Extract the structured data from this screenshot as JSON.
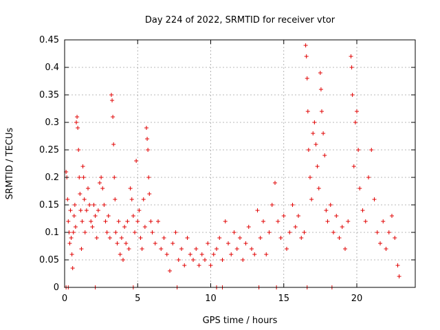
{
  "chart_data": {
    "type": "scatter",
    "title": "Day 224 of 2022, SRMTID for receiver vtor",
    "xlabel": "GPS time / hours",
    "ylabel": "SRMTID / TECUs",
    "xlim": [
      0,
      24
    ],
    "ylim": [
      0,
      0.45
    ],
    "x_ticks": [
      0,
      5,
      10,
      15,
      20
    ],
    "x_tick_labels": [
      "0",
      "5",
      "10",
      "15",
      "20"
    ],
    "y_ticks": [
      0,
      0.05,
      0.1,
      0.15,
      0.2,
      0.25,
      0.3,
      0.35,
      0.4,
      0.45
    ],
    "y_tick_labels": [
      "0",
      "0.05",
      "0.1",
      "0.15",
      "0.2",
      "0.25",
      "0.3",
      "0.35",
      "0.4",
      "0.45"
    ],
    "grid": true,
    "marker": "plus",
    "color": "#e00000",
    "series": [
      {
        "name": "SRMTID",
        "points": [
          [
            0.1,
            0.21
          ],
          [
            0.15,
            0.2
          ],
          [
            0.2,
            0.16
          ],
          [
            0.25,
            0.12
          ],
          [
            0.3,
            0.1
          ],
          [
            0.35,
            0.08
          ],
          [
            0.4,
            0.14
          ],
          [
            0.45,
            0.09
          ],
          [
            0.5,
            0.06
          ],
          [
            0.55,
            0.035
          ],
          [
            0.6,
            0.1
          ],
          [
            0.65,
            0.13
          ],
          [
            0.7,
            0.15
          ],
          [
            0.75,
            0.11
          ],
          [
            0.8,
            0.3
          ],
          [
            0.85,
            0.31
          ],
          [
            0.9,
            0.29
          ],
          [
            0.95,
            0.25
          ],
          [
            1.0,
            0.2
          ],
          [
            1.05,
            0.17
          ],
          [
            1.1,
            0.14
          ],
          [
            1.15,
            0.07
          ],
          [
            1.2,
            0.12
          ],
          [
            1.25,
            0.22
          ],
          [
            1.3,
            0.2
          ],
          [
            1.35,
            0.16
          ],
          [
            1.4,
            0.1
          ],
          [
            1.5,
            0.14
          ],
          [
            1.6,
            0.18
          ],
          [
            1.7,
            0.15
          ],
          [
            1.8,
            0.12
          ],
          [
            1.9,
            0.11
          ],
          [
            2.0,
            0.15
          ],
          [
            2.1,
            0.13
          ],
          [
            2.2,
            0.09
          ],
          [
            2.3,
            0.14
          ],
          [
            2.4,
            0.19
          ],
          [
            2.5,
            0.2
          ],
          [
            2.6,
            0.18
          ],
          [
            2.7,
            0.15
          ],
          [
            2.8,
            0.12
          ],
          [
            2.9,
            0.1
          ],
          [
            3.0,
            0.13
          ],
          [
            3.1,
            0.09
          ],
          [
            3.2,
            0.35
          ],
          [
            3.25,
            0.34
          ],
          [
            3.3,
            0.31
          ],
          [
            3.35,
            0.26
          ],
          [
            3.4,
            0.2
          ],
          [
            3.45,
            0.16
          ],
          [
            3.5,
            0.1
          ],
          [
            3.6,
            0.08
          ],
          [
            3.7,
            0.12
          ],
          [
            3.8,
            0.06
          ],
          [
            3.9,
            0.09
          ],
          [
            4.0,
            0.05
          ],
          [
            4.1,
            0.11
          ],
          [
            4.2,
            0.08
          ],
          [
            4.3,
            0.12
          ],
          [
            4.4,
            0.07
          ],
          [
            4.5,
            0.18
          ],
          [
            4.6,
            0.16
          ],
          [
            4.7,
            0.13
          ],
          [
            4.8,
            0.1
          ],
          [
            4.9,
            0.23
          ],
          [
            5.0,
            0.12
          ],
          [
            5.1,
            0.14
          ],
          [
            5.2,
            0.09
          ],
          [
            5.3,
            0.07
          ],
          [
            5.4,
            0.16
          ],
          [
            5.5,
            0.11
          ],
          [
            5.6,
            0.29
          ],
          [
            5.65,
            0.27
          ],
          [
            5.7,
            0.25
          ],
          [
            5.75,
            0.2
          ],
          [
            5.8,
            0.17
          ],
          [
            5.9,
            0.12
          ],
          [
            6.0,
            0.1
          ],
          [
            6.2,
            0.08
          ],
          [
            6.4,
            0.12
          ],
          [
            6.6,
            0.07
          ],
          [
            6.8,
            0.09
          ],
          [
            7.0,
            0.06
          ],
          [
            7.2,
            0.03
          ],
          [
            7.4,
            0.08
          ],
          [
            7.6,
            0.1
          ],
          [
            7.8,
            0.05
          ],
          [
            8.0,
            0.07
          ],
          [
            8.2,
            0.04
          ],
          [
            8.4,
            0.09
          ],
          [
            8.6,
            0.06
          ],
          [
            8.8,
            0.05
          ],
          [
            9.0,
            0.07
          ],
          [
            9.2,
            0.04
          ],
          [
            9.4,
            0.06
          ],
          [
            9.6,
            0.05
          ],
          [
            9.8,
            0.08
          ],
          [
            10.0,
            0.04
          ],
          [
            10.2,
            0.06
          ],
          [
            10.4,
            0.07
          ],
          [
            10.6,
            0.09
          ],
          [
            10.8,
            0.05
          ],
          [
            11.0,
            0.12
          ],
          [
            11.2,
            0.08
          ],
          [
            11.4,
            0.06
          ],
          [
            11.6,
            0.1
          ],
          [
            11.8,
            0.07
          ],
          [
            12.0,
            0.09
          ],
          [
            12.2,
            0.05
          ],
          [
            12.4,
            0.08
          ],
          [
            12.6,
            0.11
          ],
          [
            12.8,
            0.07
          ],
          [
            13.0,
            0.06
          ],
          [
            13.2,
            0.14
          ],
          [
            13.4,
            0.09
          ],
          [
            13.6,
            0.12
          ],
          [
            13.8,
            0.06
          ],
          [
            14.0,
            0.1
          ],
          [
            14.2,
            0.15
          ],
          [
            14.4,
            0.19
          ],
          [
            14.6,
            0.12
          ],
          [
            14.8,
            0.09
          ],
          [
            15.0,
            0.13
          ],
          [
            15.2,
            0.07
          ],
          [
            15.4,
            0.1
          ],
          [
            15.6,
            0.15
          ],
          [
            15.8,
            0.11
          ],
          [
            16.0,
            0.13
          ],
          [
            16.2,
            0.09
          ],
          [
            16.4,
            0.1
          ],
          [
            16.5,
            0.44
          ],
          [
            16.55,
            0.42
          ],
          [
            16.6,
            0.38
          ],
          [
            16.65,
            0.32
          ],
          [
            16.7,
            0.25
          ],
          [
            16.8,
            0.2
          ],
          [
            16.9,
            0.16
          ],
          [
            17.0,
            0.28
          ],
          [
            17.1,
            0.3
          ],
          [
            17.2,
            0.26
          ],
          [
            17.3,
            0.22
          ],
          [
            17.4,
            0.18
          ],
          [
            17.5,
            0.39
          ],
          [
            17.55,
            0.36
          ],
          [
            17.6,
            0.32
          ],
          [
            17.7,
            0.28
          ],
          [
            17.8,
            0.24
          ],
          [
            17.9,
            0.14
          ],
          [
            18.0,
            0.12
          ],
          [
            18.2,
            0.15
          ],
          [
            18.4,
            0.1
          ],
          [
            18.6,
            0.13
          ],
          [
            18.8,
            0.09
          ],
          [
            19.0,
            0.11
          ],
          [
            19.2,
            0.07
          ],
          [
            19.4,
            0.12
          ],
          [
            19.6,
            0.42
          ],
          [
            19.65,
            0.4
          ],
          [
            19.7,
            0.35
          ],
          [
            19.8,
            0.22
          ],
          [
            19.9,
            0.3
          ],
          [
            20.0,
            0.32
          ],
          [
            20.1,
            0.25
          ],
          [
            20.2,
            0.18
          ],
          [
            20.4,
            0.14
          ],
          [
            20.6,
            0.12
          ],
          [
            20.8,
            0.2
          ],
          [
            21.0,
            0.25
          ],
          [
            21.2,
            0.16
          ],
          [
            21.4,
            0.1
          ],
          [
            21.6,
            0.08
          ],
          [
            21.8,
            0.12
          ],
          [
            22.0,
            0.07
          ],
          [
            22.2,
            0.1
          ],
          [
            22.4,
            0.13
          ],
          [
            22.6,
            0.09
          ],
          [
            22.8,
            0.04
          ],
          [
            22.9,
            0.02
          ]
        ],
        "zero_values_at_x": [
          0.1,
          0.25,
          2.1,
          4.7,
          7.7,
          10.4,
          10.8,
          13.3,
          14.5,
          16.6,
          18.3
        ]
      }
    ]
  }
}
